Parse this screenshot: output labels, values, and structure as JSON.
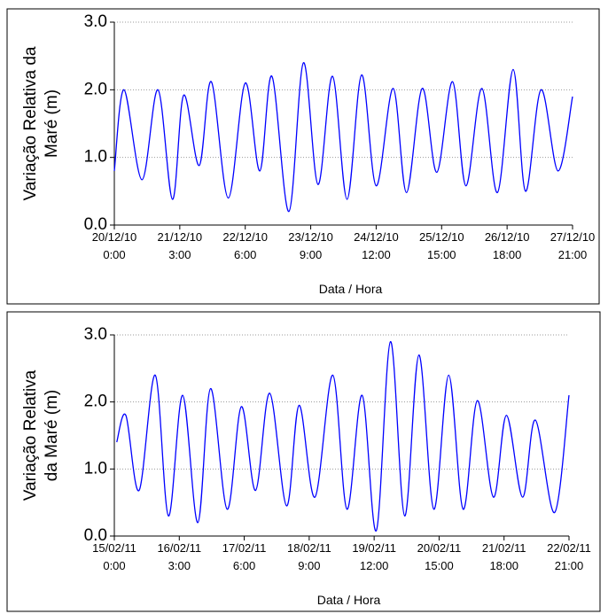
{
  "chart_data": [
    {
      "type": "line",
      "xlabel": "Data / Hora",
      "ylabel": [
        "Variação Relativa da",
        "Maré (m)"
      ],
      "xlim": [
        0,
        189
      ],
      "ylim": [
        0,
        3
      ],
      "xticks": [
        {
          "value": 0,
          "label": "20/12/10 0:00"
        },
        {
          "value": 27,
          "label": "21/12/10 3:00"
        },
        {
          "value": 54,
          "label": "22/12/10 6:00"
        },
        {
          "value": 81,
          "label": "23/12/10 9:00"
        },
        {
          "value": 108,
          "label": "24/12/10 12:00"
        },
        {
          "value": 135,
          "label": "25/12/10 15:00"
        },
        {
          "value": 162,
          "label": "26/12/10 18:00"
        },
        {
          "value": 189,
          "label": "27/12/10 21:00"
        }
      ],
      "yticks": [
        {
          "value": 0,
          "label": "0.0"
        },
        {
          "value": 1,
          "label": "1.0"
        },
        {
          "value": 2,
          "label": "2.0"
        },
        {
          "value": 3,
          "label": "3.0"
        }
      ],
      "grid": true,
      "color": "#0000ff",
      "x": [
        0,
        4,
        11.4,
        18,
        24,
        28.6,
        35,
        40,
        47,
        54,
        60,
        65,
        72,
        78,
        84,
        90,
        96,
        102,
        108,
        115,
        120.5,
        127,
        133,
        139.5,
        145,
        151.6,
        158,
        164.5,
        169.6,
        176,
        183,
        189
      ],
      "values": [
        0.8,
        2.0,
        0.67,
        2.0,
        0.38,
        1.92,
        0.88,
        2.12,
        0.4,
        2.1,
        0.8,
        2.2,
        0.2,
        2.4,
        0.6,
        2.2,
        0.38,
        2.22,
        0.58,
        2.02,
        0.48,
        2.02,
        0.78,
        2.12,
        0.58,
        2.02,
        0.48,
        2.3,
        0.5,
        2.0,
        0.8,
        1.9
      ]
    },
    {
      "type": "line",
      "xlabel": "Data / Hora",
      "ylabel": [
        "Variação Relativa",
        "da Maré (m)"
      ],
      "xlim": [
        0,
        189
      ],
      "ylim": [
        0,
        3
      ],
      "xticks": [
        {
          "value": 0,
          "label": "15/02/11 0:00"
        },
        {
          "value": 27,
          "label": "16/02/11 3:00"
        },
        {
          "value": 54,
          "label": "17/02/11 6:00"
        },
        {
          "value": 81,
          "label": "18/02/11 9:00"
        },
        {
          "value": 108,
          "label": "19/02/11 12:00"
        },
        {
          "value": 135,
          "label": "20/02/11 15:00"
        },
        {
          "value": 162,
          "label": "21/02/11 18:00"
        },
        {
          "value": 189,
          "label": "22/02/11 21:00"
        }
      ],
      "yticks": [
        {
          "value": 0,
          "label": "0.0"
        },
        {
          "value": 1,
          "label": "1.0"
        },
        {
          "value": 2,
          "label": "2.0"
        },
        {
          "value": 3,
          "label": "3.0"
        }
      ],
      "grid": true,
      "color": "#0000ff",
      "x": [
        1,
        4.8,
        10.3,
        17,
        22.5,
        28.4,
        34.7,
        40,
        46.9,
        52.8,
        58.7,
        64.6,
        71.6,
        76.8,
        83.4,
        90.8,
        96.7,
        103,
        108.9,
        114.8,
        120.7,
        126.6,
        132.8,
        139,
        145,
        150.9,
        157.6,
        163,
        169.7,
        175,
        183,
        189
      ],
      "values": [
        1.4,
        1.8,
        0.68,
        2.4,
        0.3,
        2.1,
        0.2,
        2.2,
        0.4,
        1.93,
        0.68,
        2.13,
        0.45,
        1.95,
        0.58,
        2.4,
        0.4,
        2.1,
        0.08,
        2.9,
        0.3,
        2.7,
        0.4,
        2.4,
        0.4,
        2.02,
        0.58,
        1.8,
        0.58,
        1.73,
        0.35,
        2.1
      ]
    }
  ]
}
